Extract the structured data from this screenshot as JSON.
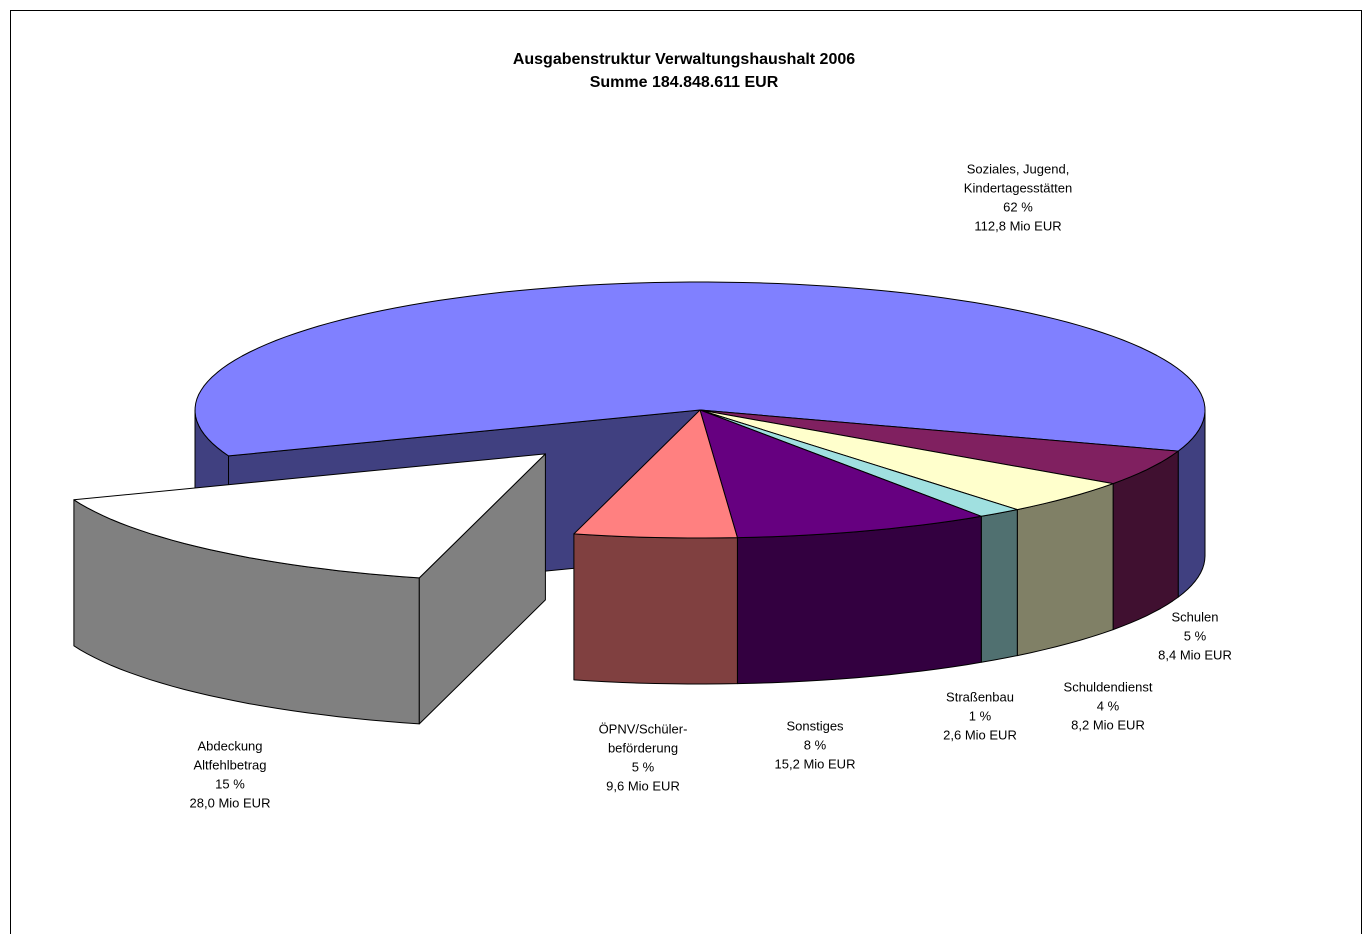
{
  "chart_data": {
    "type": "pie3d",
    "title": [
      "Ausgabenstruktur Verwaltungshaushalt 2006",
      "Summe 184.848.611 EUR"
    ],
    "categories": [
      [
        "Soziales, Jugend,",
        "Kindertagesstätten"
      ],
      [
        "Schulen"
      ],
      [
        "Schuldendienst"
      ],
      [
        "Straßenbau"
      ],
      [
        "Sonstiges"
      ],
      [
        "ÖPNV/Schüler-",
        "beförderung"
      ],
      [
        "Abdeckung",
        "Altfehlbetrag"
      ]
    ],
    "values": [
      112.8,
      8.4,
      8.2,
      2.6,
      15.2,
      9.6,
      28.0
    ],
    "value_labels": [
      "112,8 Mio EUR",
      "8,4 Mio EUR",
      "8,2 Mio EUR",
      "2,6 Mio EUR",
      "15,2 Mio EUR",
      "9,6 Mio EUR",
      "28,0 Mio EUR"
    ],
    "percent": [
      62,
      5,
      4,
      1,
      8,
      5,
      15
    ],
    "percent_labels": [
      "62 %",
      "5 %",
      "4 %",
      "1 %",
      "8 %",
      "5 %",
      "15 %"
    ],
    "colors": [
      "#8080ff",
      "#802060",
      "#ffffcc",
      "#a0e0e0",
      "#660080",
      "#ff8080",
      "#ffffff"
    ],
    "side_colors": [
      "#404080",
      "#401030",
      "#808066",
      "#507070",
      "#330040",
      "#804040",
      "#808080"
    ],
    "exploded": 6
  }
}
